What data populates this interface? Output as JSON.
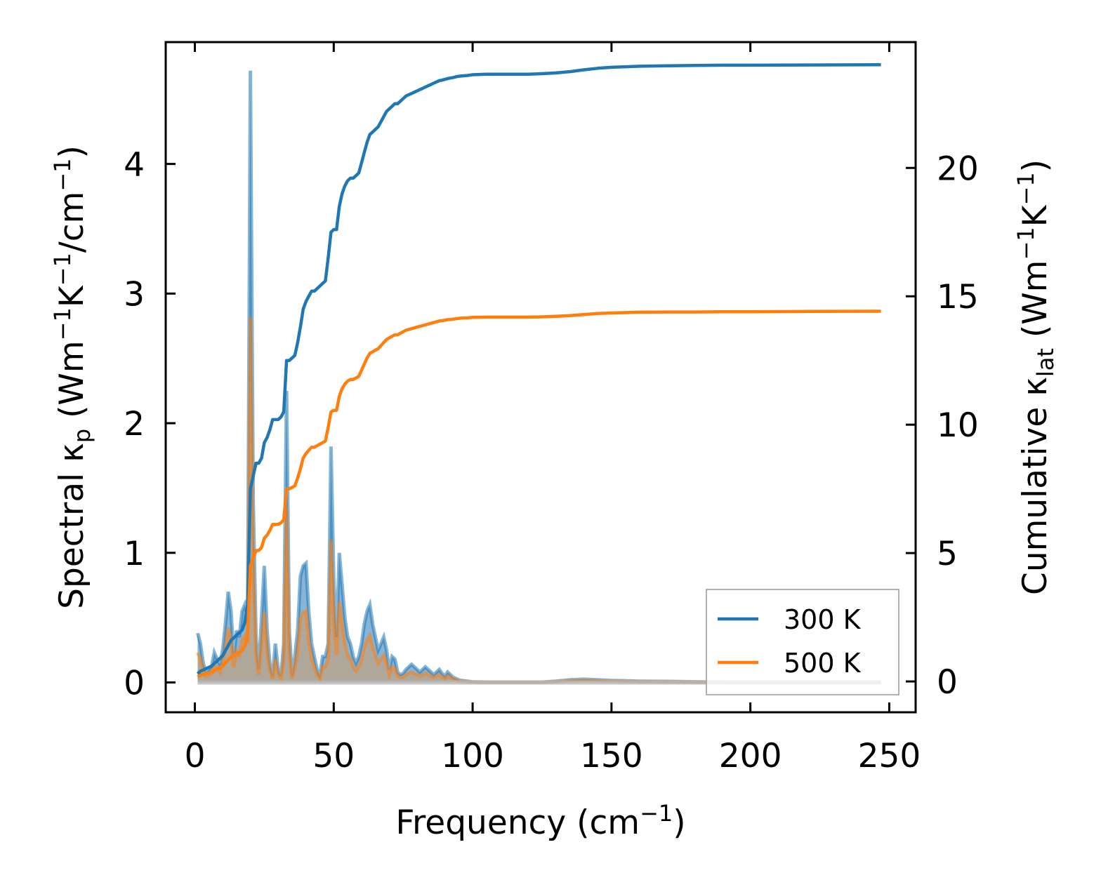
{
  "chart_data": {
    "type": "line",
    "title": "",
    "xlabel": "Frequency (cm",
    "xlabel_sup": "−1",
    "xlabel_tail": ")",
    "ylabel_left": {
      "parts": [
        {
          "t": "Spectral κ",
          "s": "n"
        },
        {
          "t": "p",
          "s": "sub"
        },
        {
          "t": " (Wm",
          "s": "n"
        },
        {
          "t": "−1",
          "s": "sup"
        },
        {
          "t": "K",
          "s": "n"
        },
        {
          "t": "−1",
          "s": "sup"
        },
        {
          "t": "/cm",
          "s": "n"
        },
        {
          "t": "−1",
          "s": "sup"
        },
        {
          "t": ")",
          "s": "n"
        }
      ]
    },
    "ylabel_right": {
      "parts": [
        {
          "t": "Cumulative κ",
          "s": "n"
        },
        {
          "t": "lat",
          "s": "sub"
        },
        {
          "t": " (Wm",
          "s": "n"
        },
        {
          "t": "−1",
          "s": "sup"
        },
        {
          "t": "K",
          "s": "n"
        },
        {
          "t": "−1",
          "s": "sup"
        },
        {
          "t": ")",
          "s": "n"
        }
      ]
    },
    "xlim": [
      -10.5,
      259.5
    ],
    "ylim_left": [
      -0.23,
      4.94
    ],
    "ylim_right": [
      -1.2,
      24.9
    ],
    "xticks": [
      0,
      50,
      100,
      150,
      200,
      250
    ],
    "xtick_labels": [
      "0",
      "50",
      "100",
      "150",
      "200",
      "250"
    ],
    "yticks_left": [
      0,
      1,
      2,
      3,
      4
    ],
    "ytick_labels_left": [
      "0",
      "1",
      "2",
      "3",
      "4"
    ],
    "yticks_right": [
      0,
      5,
      10,
      15,
      20
    ],
    "ytick_labels_right": [
      "0",
      "5",
      "10",
      "15",
      "20"
    ],
    "grid": false,
    "legend_position": "lower-right",
    "colors": {
      "s300": "#1f77b4",
      "s500": "#ff7f0e",
      "fill300": "#5f9bc9",
      "fill500": "#c4a07a"
    },
    "spectral_x": [
      1,
      2,
      3,
      4,
      5,
      6,
      7,
      8,
      9,
      10,
      11,
      12,
      13,
      14,
      15,
      16,
      17,
      18,
      19,
      20,
      21,
      22,
      23,
      24,
      25,
      26,
      27,
      28,
      29,
      30,
      31,
      32,
      33,
      34,
      35,
      36,
      37,
      38,
      39,
      40,
      41,
      42,
      43,
      44,
      45,
      46,
      47,
      48,
      49,
      50,
      51,
      52,
      53,
      54,
      55,
      56,
      57,
      58,
      59,
      60,
      61,
      62,
      63,
      64,
      65,
      66,
      67,
      68,
      69,
      70,
      71,
      72,
      73,
      74,
      75,
      76,
      77,
      78,
      79,
      80,
      81,
      82,
      83,
      84,
      85,
      86,
      87,
      88,
      89,
      90,
      91,
      92,
      93,
      94,
      95,
      96,
      98,
      100,
      105,
      110,
      120,
      125,
      130,
      135,
      140,
      145,
      150,
      160,
      170,
      180,
      190,
      200,
      220,
      247
    ],
    "series": [
      {
        "name": "300 K",
        "spectral": [
          0.38,
          0.3,
          0.15,
          0.08,
          0.1,
          0.12,
          0.23,
          0.18,
          0.14,
          0.25,
          0.45,
          0.7,
          0.55,
          0.2,
          0.4,
          0.35,
          0.55,
          0.6,
          0.5,
          4.72,
          1.4,
          0.35,
          0.1,
          0.5,
          0.9,
          0.4,
          0.15,
          0.05,
          0.3,
          0.1,
          0.05,
          0.3,
          2.25,
          0.4,
          0.05,
          0.2,
          0.4,
          0.82,
          0.9,
          0.92,
          0.55,
          0.3,
          0.2,
          0.1,
          0.05,
          0.2,
          0.2,
          0.3,
          1.82,
          0.8,
          0.35,
          1.0,
          0.75,
          0.5,
          0.35,
          0.3,
          0.2,
          0.15,
          0.2,
          0.3,
          0.45,
          0.55,
          0.6,
          0.45,
          0.35,
          0.25,
          0.3,
          0.35,
          0.25,
          0.1,
          0.2,
          0.18,
          0.08,
          0.06,
          0.07,
          0.1,
          0.12,
          0.14,
          0.12,
          0.1,
          0.08,
          0.1,
          0.12,
          0.1,
          0.08,
          0.06,
          0.08,
          0.1,
          0.07,
          0.05,
          0.08,
          0.06,
          0.04,
          0.03,
          0.02,
          0.015,
          0.01,
          0.005,
          0.003,
          0.002,
          0.002,
          0.003,
          0.01,
          0.02,
          0.025,
          0.02,
          0.015,
          0.01,
          0.008,
          0.005,
          0.003,
          0.002,
          0.001,
          0.0
        ],
        "cumulative": [
          0.3,
          0.4,
          0.45,
          0.5,
          0.55,
          0.6,
          0.7,
          0.8,
          0.9,
          1.0,
          1.2,
          1.4,
          1.6,
          1.7,
          1.8,
          1.9,
          2.0,
          2.3,
          3.0,
          7.5,
          8.0,
          8.5,
          8.5,
          8.7,
          9.3,
          9.5,
          9.8,
          10.2,
          10.2,
          10.2,
          10.3,
          10.5,
          12.5,
          12.5,
          12.6,
          12.7,
          13.2,
          13.8,
          14.5,
          14.8,
          15.0,
          15.2,
          15.2,
          15.3,
          15.4,
          15.5,
          15.6,
          16.5,
          17.5,
          17.6,
          17.6,
          18.5,
          19.0,
          19.3,
          19.5,
          19.6,
          19.6,
          19.7,
          19.8,
          20.2,
          20.6,
          21.0,
          21.3,
          21.4,
          21.5,
          21.6,
          21.8,
          22.0,
          22.2,
          22.3,
          22.4,
          22.5,
          22.5,
          22.6,
          22.7,
          22.8,
          22.85,
          22.9,
          22.95,
          23.0,
          23.05,
          23.1,
          23.15,
          23.2,
          23.25,
          23.3,
          23.35,
          23.4,
          23.42,
          23.45,
          23.48,
          23.5,
          23.52,
          23.55,
          23.57,
          23.58,
          23.6,
          23.63,
          23.65,
          23.65,
          23.65,
          23.67,
          23.7,
          23.75,
          23.82,
          23.88,
          23.92,
          23.96,
          23.98,
          23.99,
          24.0,
          24.0,
          24.01,
          24.02
        ]
      },
      {
        "name": "500 K",
        "spectral": [
          0.23,
          0.18,
          0.09,
          0.05,
          0.06,
          0.07,
          0.14,
          0.11,
          0.08,
          0.15,
          0.27,
          0.42,
          0.33,
          0.12,
          0.24,
          0.21,
          0.33,
          0.36,
          0.3,
          2.82,
          0.84,
          0.21,
          0.06,
          0.3,
          0.54,
          0.24,
          0.09,
          0.03,
          0.18,
          0.06,
          0.03,
          0.18,
          1.35,
          0.24,
          0.03,
          0.12,
          0.24,
          0.49,
          0.54,
          0.55,
          0.33,
          0.18,
          0.12,
          0.06,
          0.03,
          0.12,
          0.12,
          0.18,
          1.1,
          0.48,
          0.21,
          0.62,
          0.45,
          0.3,
          0.21,
          0.18,
          0.12,
          0.09,
          0.12,
          0.18,
          0.27,
          0.33,
          0.36,
          0.27,
          0.21,
          0.15,
          0.18,
          0.21,
          0.15,
          0.06,
          0.12,
          0.11,
          0.05,
          0.04,
          0.04,
          0.06,
          0.07,
          0.08,
          0.07,
          0.06,
          0.05,
          0.06,
          0.07,
          0.06,
          0.05,
          0.04,
          0.05,
          0.06,
          0.04,
          0.03,
          0.05,
          0.04,
          0.02,
          0.02,
          0.01,
          0.009,
          0.006,
          0.003,
          0.002,
          0.001,
          0.001,
          0.002,
          0.006,
          0.012,
          0.015,
          0.012,
          0.009,
          0.006,
          0.005,
          0.003,
          0.002,
          0.001,
          0.001,
          0.0
        ],
        "cumulative": [
          0.18,
          0.24,
          0.27,
          0.3,
          0.33,
          0.36,
          0.42,
          0.48,
          0.54,
          0.6,
          0.72,
          0.84,
          0.96,
          1.02,
          1.08,
          1.14,
          1.2,
          1.38,
          1.8,
          4.5,
          4.8,
          5.1,
          5.1,
          5.22,
          5.58,
          5.7,
          5.88,
          6.12,
          6.12,
          6.12,
          6.18,
          6.3,
          7.5,
          7.5,
          7.56,
          7.62,
          7.92,
          8.28,
          8.7,
          8.88,
          9.0,
          9.12,
          9.12,
          9.18,
          9.24,
          9.3,
          9.36,
          9.9,
          10.5,
          10.56,
          10.56,
          11.1,
          11.4,
          11.58,
          11.7,
          11.76,
          11.76,
          11.82,
          11.88,
          12.12,
          12.36,
          12.6,
          12.78,
          12.84,
          12.9,
          12.96,
          13.08,
          13.2,
          13.32,
          13.38,
          13.44,
          13.5,
          13.5,
          13.56,
          13.62,
          13.68,
          13.71,
          13.74,
          13.77,
          13.8,
          13.83,
          13.86,
          13.89,
          13.92,
          13.95,
          13.98,
          14.01,
          14.04,
          14.05,
          14.07,
          14.09,
          14.1,
          14.11,
          14.13,
          14.14,
          14.15,
          14.16,
          14.18,
          14.19,
          14.19,
          14.19,
          14.2,
          14.22,
          14.25,
          14.29,
          14.33,
          14.35,
          14.38,
          14.39,
          14.39,
          14.4,
          14.4,
          14.41,
          14.42
        ]
      }
    ]
  }
}
